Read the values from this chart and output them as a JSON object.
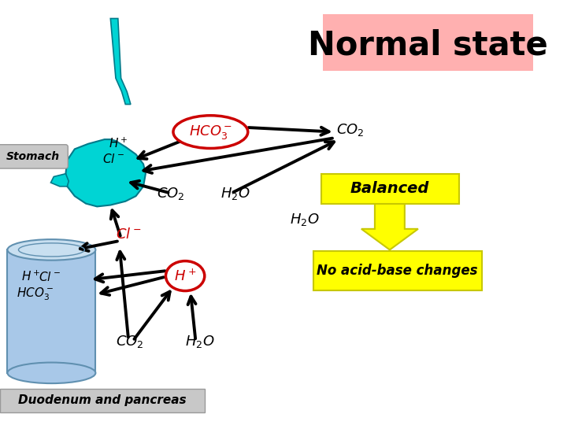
{
  "title": "Normal state",
  "title_bg": "#ffb0b0",
  "bg_color": "#ffffff",
  "stomach_color": "#00d4d4",
  "pancreas_color": "#a8c8e8",
  "pancreas_edge": "#6090b0",
  "oval_border_color": "#cc0000",
  "oval_text_color": "#cc0000",
  "yellow_color": "#ffff00",
  "yellow_edge": "#c8c800",
  "arrow_color": "#000000",
  "red_text_color": "#cc0000",
  "stomach_label": "Stomach",
  "duodenum_label": "Duodenum and pancreas",
  "balanced_label": "Balanced",
  "no_change_label": "No acid-base changes"
}
